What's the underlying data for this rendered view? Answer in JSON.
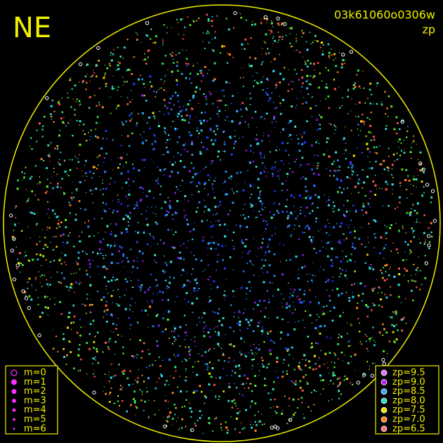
{
  "header": {
    "direction": "NE",
    "frame_id": "03k61060o0306w",
    "mode": "zp"
  },
  "magnitude_legend": [
    "m=0",
    "m=1",
    "m=2",
    "m=3",
    "m=4",
    "m=5",
    "m=6"
  ],
  "zp_legend": [
    {
      "label": "zp=9.5",
      "color": "#e070ff"
    },
    {
      "label": "zp=9.0",
      "color": "#c020f0"
    },
    {
      "label": "zp=8.5",
      "color": "#40a8ff"
    },
    {
      "label": "zp=8.0",
      "color": "#30e0c0"
    },
    {
      "label": "zp=7.5",
      "color": "#f0e000"
    },
    {
      "label": "zp=7.0",
      "color": "#ff8020"
    },
    {
      "label": "zp=6.5",
      "color": "#ff7080"
    }
  ]
}
